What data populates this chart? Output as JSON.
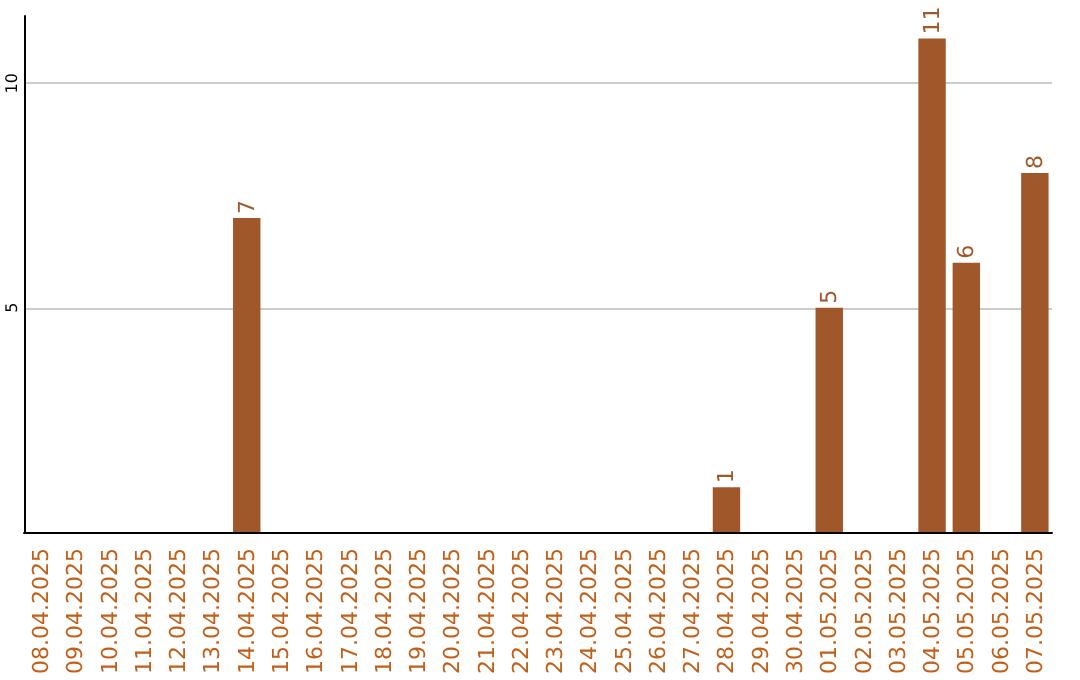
{
  "chart_data": {
    "type": "bar",
    "categories": [
      "08.04.2025",
      "09.04.2025",
      "10.04.2025",
      "11.04.2025",
      "12.04.2025",
      "13.04.2025",
      "14.04.2025",
      "15.04.2025",
      "16.04.2025",
      "17.04.2025",
      "18.04.2025",
      "19.04.2025",
      "20.04.2025",
      "21.04.2025",
      "22.04.2025",
      "23.04.2025",
      "24.04.2025",
      "25.04.2025",
      "26.04.2025",
      "27.04.2025",
      "28.04.2025",
      "29.04.2025",
      "30.04.2025",
      "01.05.2025",
      "02.05.2025",
      "03.05.2025",
      "04.05.2025",
      "05.05.2025",
      "06.05.2025",
      "07.05.2025"
    ],
    "values": [
      0,
      0,
      0,
      0,
      0,
      0,
      7,
      0,
      0,
      0,
      0,
      0,
      0,
      0,
      0,
      0,
      0,
      0,
      0,
      0,
      1,
      0,
      0,
      5,
      0,
      0,
      11,
      6,
      0,
      8
    ],
    "value_labels": [
      null,
      null,
      null,
      null,
      null,
      null,
      "7",
      null,
      null,
      null,
      null,
      null,
      null,
      null,
      null,
      null,
      null,
      null,
      null,
      null,
      "1",
      null,
      null,
      "5",
      null,
      null,
      "11",
      "6",
      null,
      "8"
    ],
    "color": "#a0582a",
    "ylim": [
      0,
      11.5
    ],
    "yticks": [
      5,
      10
    ],
    "grid": "y"
  }
}
